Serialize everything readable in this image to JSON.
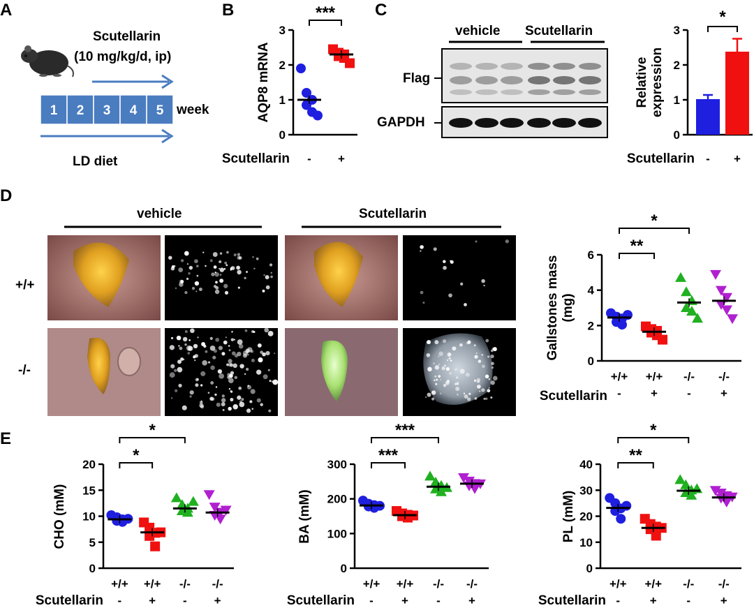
{
  "panels": {
    "A": "A",
    "B": "B",
    "C": "C",
    "D": "D",
    "E": "E"
  },
  "colors": {
    "wt": "#1f1fe0",
    "wt_scut": "#f01010",
    "ko": "#20b020",
    "ko_scut": "#b020d0",
    "arrow": "#4a7cc0",
    "timeline": "#4a7cc0"
  },
  "panelA": {
    "drug": "Scutellarin",
    "dose": "(10 mg/kg/d, ip)",
    "weeks": [
      "1",
      "2",
      "3",
      "4",
      "5"
    ],
    "week_label": "week",
    "diet": "LD diet"
  },
  "panelB": {
    "chart_data": {
      "type": "scatter",
      "ylabel": "AQP8 mRNA",
      "ylim": [
        0,
        3
      ],
      "yticks": [
        "0",
        "1",
        "2",
        "3"
      ],
      "x_row_label": "Scutellarin",
      "x_labels": [
        "-",
        "+"
      ],
      "significance": "***",
      "series": [
        {
          "values": [
            1.9,
            1.2,
            1.0,
            0.85,
            0.65,
            0.55
          ],
          "mean": 1.0
        },
        {
          "values": [
            2.45,
            2.35,
            2.3,
            2.25,
            2.2,
            2.05
          ],
          "mean": 2.3
        }
      ]
    }
  },
  "panelC": {
    "groups": [
      "vehicle",
      "Scutellarin"
    ],
    "blots": [
      "Flag",
      "GAPDH"
    ],
    "chart_data": {
      "type": "bar",
      "ylabel_lines": [
        "Relative",
        "expression"
      ],
      "ylim": [
        0,
        3
      ],
      "yticks": [
        "0",
        "1",
        "2",
        "3"
      ],
      "x_row_label": "Scutellarin",
      "x_labels": [
        "-",
        "+"
      ],
      "values": [
        1.02,
        2.38
      ],
      "errors": [
        0.12,
        0.37
      ],
      "significance": "*"
    }
  },
  "panelD": {
    "groups": [
      "vehicle",
      "Scutellarin"
    ],
    "rows": [
      "+/+",
      "-/-"
    ],
    "chart_data": {
      "type": "scatter",
      "ylabel_lines": [
        "Gallstones mass",
        "(mg)"
      ],
      "ylim": [
        0,
        6
      ],
      "yticks": [
        "0",
        "2",
        "4",
        "6"
      ],
      "genotype_labels": [
        "+/+",
        "+/+",
        "-/-",
        "-/-"
      ],
      "x_row_label": "Scutellarin",
      "x_labels": [
        "-",
        "+",
        "-",
        "+"
      ],
      "series": [
        {
          "values": [
            2.7,
            2.5,
            2.4,
            2.2,
            2.05,
            2.6
          ],
          "mean": 2.45
        },
        {
          "values": [
            1.95,
            1.8,
            1.7,
            1.6,
            1.45,
            1.2
          ],
          "mean": 1.65
        },
        {
          "values": [
            4.7,
            3.9,
            3.4,
            3.0,
            2.8,
            2.4
          ],
          "mean": 3.3
        },
        {
          "values": [
            4.9,
            4.0,
            3.6,
            3.2,
            2.9,
            2.4
          ],
          "mean": 3.4
        }
      ],
      "significance": [
        {
          "label": "**",
          "from": 0,
          "to": 1
        },
        {
          "label": "*",
          "from": 0,
          "to": 2
        }
      ]
    }
  },
  "panelE": {
    "charts": [
      {
        "ylabel": "CHO (mM)",
        "ylim": [
          0,
          20
        ],
        "yticks": [
          "0",
          "5",
          "10",
          "15",
          "20"
        ],
        "genotype_labels": [
          "+/+",
          "+/+",
          "-/-",
          "-/-"
        ],
        "x_row_label": "Scutellarin",
        "x_labels": [
          "-",
          "+",
          "-",
          "+"
        ],
        "series": [
          {
            "values": [
              10.2,
              9.8,
              9.4,
              9.1,
              8.9,
              9.5
            ],
            "mean": 9.4
          },
          {
            "values": [
              8.8,
              7.8,
              6.8,
              6.2,
              4.2,
              6.9
            ],
            "mean": 6.9
          },
          {
            "values": [
              13.5,
              12.2,
              11.5,
              11.0,
              10.7,
              12.8
            ],
            "mean": 11.5
          },
          {
            "values": [
              14.2,
              11.8,
              10.8,
              10.2,
              9.5,
              11.2
            ],
            "mean": 10.7
          }
        ],
        "significance": [
          {
            "label": "*",
            "from": 0,
            "to": 1
          },
          {
            "label": "*",
            "from": 0,
            "to": 2
          }
        ]
      },
      {
        "ylabel": "BA (mM)",
        "ylim": [
          0,
          300
        ],
        "yticks": [
          "0",
          "100",
          "200",
          "300"
        ],
        "genotype_labels": [
          "+/+",
          "+/+",
          "-/-",
          "-/-"
        ],
        "x_row_label": "Scutellarin",
        "x_labels": [
          "-",
          "+",
          "-",
          "+"
        ],
        "series": [
          {
            "values": [
              195,
              186,
              182,
              178,
              174,
              180
            ],
            "mean": 181
          },
          {
            "values": [
              165,
              158,
              154,
              150,
              146,
              152
            ],
            "mean": 153
          },
          {
            "values": [
              265,
              248,
              238,
              228,
              220,
              232
            ],
            "mean": 235
          },
          {
            "values": [
              262,
              252,
              245,
              238,
              230,
              244
            ],
            "mean": 244
          }
        ],
        "significance": [
          {
            "label": "***",
            "from": 0,
            "to": 1
          },
          {
            "label": "***",
            "from": 0,
            "to": 2
          }
        ]
      },
      {
        "ylabel": "PL (mM)",
        "ylim": [
          0,
          40
        ],
        "yticks": [
          "0",
          "10",
          "20",
          "30",
          "40"
        ],
        "genotype_labels": [
          "+/+",
          "+/+",
          "-/-",
          "-/-"
        ],
        "x_row_label": "Scutellarin",
        "x_labels": [
          "-",
          "+",
          "-",
          "+"
        ],
        "series": [
          {
            "values": [
              27,
              25,
              23,
              22,
              19,
              24
            ],
            "mean": 23.2
          },
          {
            "values": [
              19,
              17,
              16,
              15,
              12.5,
              15.5
            ],
            "mean": 15.5
          },
          {
            "values": [
              34,
              32,
              30,
              29,
              28,
              30.5
            ],
            "mean": 29.8
          },
          {
            "values": [
              30,
              29,
              28,
              27,
              25.5,
              27.5
            ],
            "mean": 27.2
          }
        ],
        "significance": [
          {
            "label": "**",
            "from": 0,
            "to": 1
          },
          {
            "label": "*",
            "from": 0,
            "to": 2
          }
        ]
      }
    ]
  }
}
